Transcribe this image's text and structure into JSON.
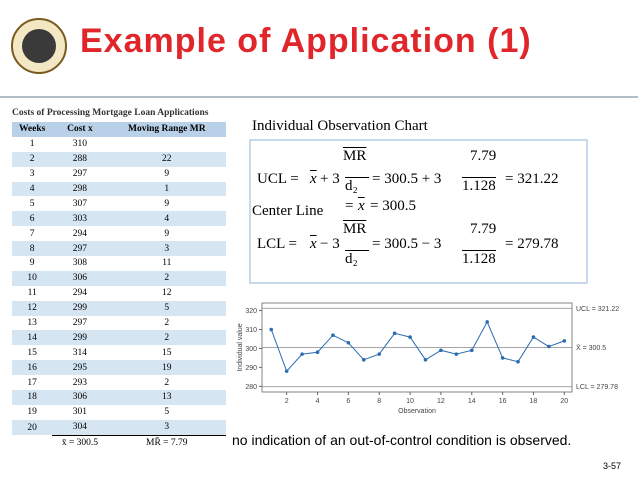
{
  "header": {
    "title": "Example of Application (1)"
  },
  "table": {
    "title": "Costs of Processing Mortgage Loan Applications",
    "columns": [
      "Weeks",
      "Cost x",
      "Moving Range MR"
    ],
    "rows": [
      [
        "1",
        "310",
        null
      ],
      [
        "2",
        "288",
        "22"
      ],
      [
        "3",
        "297",
        "9"
      ],
      [
        "4",
        "298",
        "1"
      ],
      [
        "5",
        "307",
        "9"
      ],
      [
        "6",
        "303",
        "4"
      ],
      [
        "7",
        "294",
        "9"
      ],
      [
        "8",
        "297",
        "3"
      ],
      [
        "9",
        "308",
        "11"
      ],
      [
        "10",
        "306",
        "2"
      ],
      [
        "11",
        "294",
        "12"
      ],
      [
        "12",
        "299",
        "5"
      ],
      [
        "13",
        "297",
        "2"
      ],
      [
        "14",
        "299",
        "2"
      ],
      [
        "15",
        "314",
        "15"
      ],
      [
        "16",
        "295",
        "19"
      ],
      [
        "17",
        "293",
        "2"
      ],
      [
        "18",
        "306",
        "13"
      ],
      [
        "19",
        "301",
        "5"
      ],
      [
        "20",
        "304",
        "3"
      ]
    ],
    "footer": [
      "x̄ = 300.5",
      "MR̄ = 7.79"
    ]
  },
  "formulas": {
    "heading": "Individual Observation Chart",
    "ucl": {
      "lhs": "UCL =",
      "xbar": "x",
      "op": "+ 3",
      "num": "MR",
      "den": "d₂",
      "eq": "= 300.5 + 3",
      "num2": "7.79",
      "den2": "1.128",
      "result": "= 321.22"
    },
    "center": {
      "label": "Center Line",
      "eq": "=",
      "xbar": "x",
      "result": "= 300.5"
    },
    "lcl": {
      "lhs": "LCL =",
      "xbar": "x",
      "op": "− 3",
      "num": "MR",
      "den": "d₂",
      "eq": "= 300.5 − 3",
      "num2": "7.79",
      "den2": "1.128",
      "result": "= 279.78"
    }
  },
  "chart_data": {
    "type": "line",
    "x_label": "Observation",
    "y_label": "Individual value",
    "x": [
      1,
      2,
      3,
      4,
      5,
      6,
      7,
      8,
      9,
      10,
      11,
      12,
      13,
      14,
      15,
      16,
      17,
      18,
      19,
      20
    ],
    "values": [
      310,
      288,
      297,
      298,
      307,
      303,
      294,
      297,
      308,
      306,
      294,
      299,
      297,
      299,
      314,
      295,
      293,
      306,
      301,
      304
    ],
    "color": "#2b6cb0",
    "xlim": [
      0.4,
      20.5
    ],
    "ylim": [
      277,
      324
    ],
    "xticks": [
      2,
      4,
      6,
      8,
      10,
      12,
      14,
      16,
      18,
      20
    ],
    "yticks": [
      280,
      290,
      300,
      310,
      320
    ],
    "control_lines": [
      {
        "label": "UCL = 321.22",
        "value": 321.22
      },
      {
        "label": "X̄ = 300.5",
        "value": 300.5
      },
      {
        "label": "LCL = 279.78",
        "value": 279.78
      }
    ]
  },
  "caption": "no indication of an out-of-control condition is observed.",
  "page_number": "3-57"
}
